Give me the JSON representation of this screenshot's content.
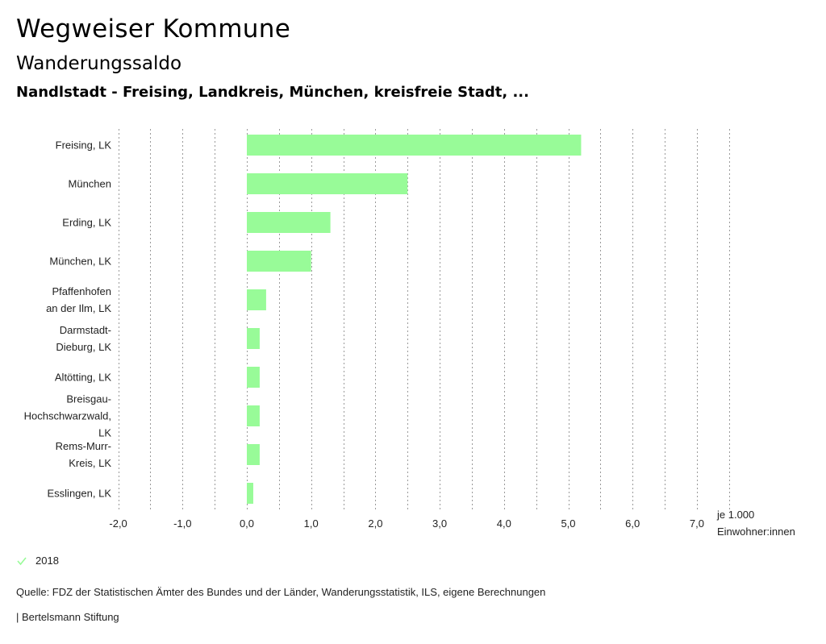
{
  "header": {
    "title": "Wegweiser Kommune",
    "subtitle": "Wanderungssaldo",
    "regions": "Nandlstadt - Freising, Landkreis, München, kreisfreie Stadt, ..."
  },
  "chart_data": {
    "type": "bar",
    "orientation": "horizontal",
    "categories": [
      [
        "Freising, LK"
      ],
      [
        "München"
      ],
      [
        "Erding, LK"
      ],
      [
        "München, LK"
      ],
      [
        "Pfaffenhofen",
        "an der Ilm, LK"
      ],
      [
        "Darmstadt-",
        "Dieburg, LK"
      ],
      [
        "Altötting, LK"
      ],
      [
        "Breisgau-",
        "Hochschwarzwald,",
        "LK"
      ],
      [
        "Rems-Murr-",
        "Kreis, LK"
      ],
      [
        "Esslingen, LK"
      ]
    ],
    "series": [
      {
        "name": "2018",
        "color": "#98fb98",
        "values": [
          5.2,
          2.5,
          1.3,
          1.0,
          0.3,
          0.2,
          0.2,
          0.2,
          0.2,
          0.1
        ]
      }
    ],
    "xlim": [
      -2.0,
      7.5
    ],
    "ticks": [
      -2,
      -1,
      0,
      1,
      2,
      3,
      4,
      5,
      6,
      7
    ],
    "tick_labels": [
      "-2,0",
      "-1,0",
      "0,0",
      "1,0",
      "2,0",
      "3,0",
      "4,0",
      "5,0",
      "6,0",
      "7,0"
    ],
    "gridlines": "vertical dotted",
    "xlabel": [
      "je 1.000",
      "Einwohner:innen"
    ],
    "legend_position": "bottom-left"
  },
  "legend": {
    "label": "2018",
    "color": "#98fb98"
  },
  "footer": {
    "source": "Quelle: FDZ der Statistischen Ämter des Bundes und der Länder, Wanderungsstatistik, ILS, eigene Berechnungen",
    "publisher": "| Bertelsmann Stiftung"
  }
}
